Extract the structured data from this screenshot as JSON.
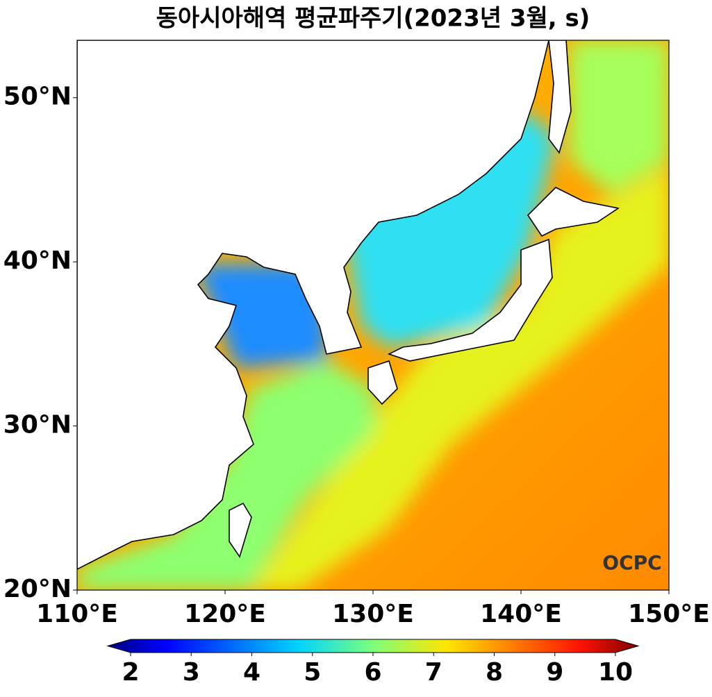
{
  "title": "동아시아해역 평균파주기(2023년 3월, s)",
  "map": {
    "xlim": [
      110,
      150
    ],
    "ylim": [
      20,
      53.5
    ],
    "xticks": [
      {
        "value": 110,
        "label": "110°E"
      },
      {
        "value": 120,
        "label": "120°E"
      },
      {
        "value": 130,
        "label": "130°E"
      },
      {
        "value": 140,
        "label": "140°E"
      },
      {
        "value": 150,
        "label": "150°E"
      }
    ],
    "yticks": [
      {
        "value": 20,
        "label": "20°N"
      },
      {
        "value": 30,
        "label": "30°N"
      },
      {
        "value": 40,
        "label": "40°N"
      },
      {
        "value": 50,
        "label": "50°N"
      }
    ],
    "logo": "OCPC"
  },
  "colorbar": {
    "colormap": "jet",
    "range": [
      2,
      10
    ],
    "ticks": [
      2,
      3,
      4,
      5,
      6,
      7,
      8,
      9,
      10
    ],
    "extend": "both"
  }
}
